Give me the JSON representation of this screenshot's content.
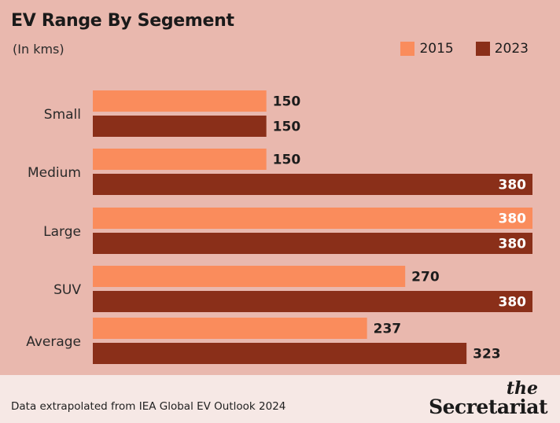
{
  "header": {
    "title": "EV Range By Segement",
    "subtitle": "(In kms)"
  },
  "legend": [
    {
      "label": "2015",
      "color": "#fa8c5c"
    },
    {
      "label": "2023",
      "color": "#8a2f19"
    }
  ],
  "chart_data": {
    "type": "bar",
    "orientation": "horizontal",
    "categories": [
      "Small",
      "Medium",
      "Large",
      "SUV",
      "Average"
    ],
    "series": [
      {
        "name": "2015",
        "color": "#fa8c5c",
        "values": [
          150,
          150,
          380,
          270,
          237
        ]
      },
      {
        "name": "2023",
        "color": "#8a2f19",
        "values": [
          150,
          380,
          380,
          380,
          323
        ]
      }
    ],
    "title": "EV Range By Segement",
    "subtitle": "(In kms)",
    "xlim": [
      0,
      380
    ],
    "grid": false,
    "legend_position": "top-right"
  },
  "footer": {
    "source": "Data extrapolated from IEA Global EV Outlook 2024",
    "logo_the": "the",
    "logo_name": "Secretariat"
  }
}
